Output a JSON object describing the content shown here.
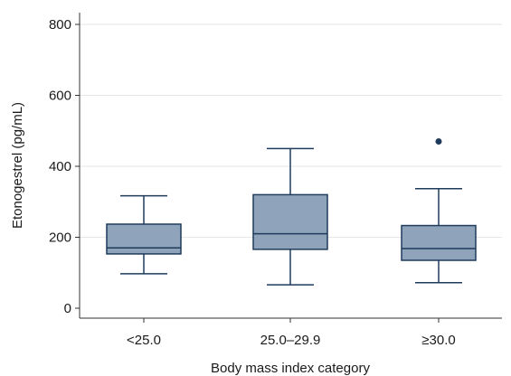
{
  "chart_data": {
    "type": "box",
    "categories": [
      "<25.0",
      "25.0–29.9",
      "≥30.0"
    ],
    "xlabel": "Body mass index category",
    "ylabel": "Etonogestrel (pg/mL)",
    "ylim": [
      -20,
      840
    ],
    "yticks": [
      0,
      200,
      400,
      600,
      800
    ],
    "grid": true,
    "colors": {
      "box_fill": "#8fa3ba",
      "box_stroke": "#1f3b5c",
      "outlier": "#1f3b5c"
    },
    "boxes": [
      {
        "category": "<25.0",
        "whisker_low": 97,
        "q1": 153,
        "median": 170,
        "q3": 237,
        "whisker_high": 317,
        "outliers": []
      },
      {
        "category": "25.0–29.9",
        "whisker_low": 66,
        "q1": 166,
        "median": 210,
        "q3": 320,
        "whisker_high": 450,
        "outliers": []
      },
      {
        "category": "≥30.0",
        "whisker_low": 72,
        "q1": 135,
        "median": 168,
        "q3": 233,
        "whisker_high": 337,
        "outliers": [
          470
        ]
      }
    ]
  }
}
